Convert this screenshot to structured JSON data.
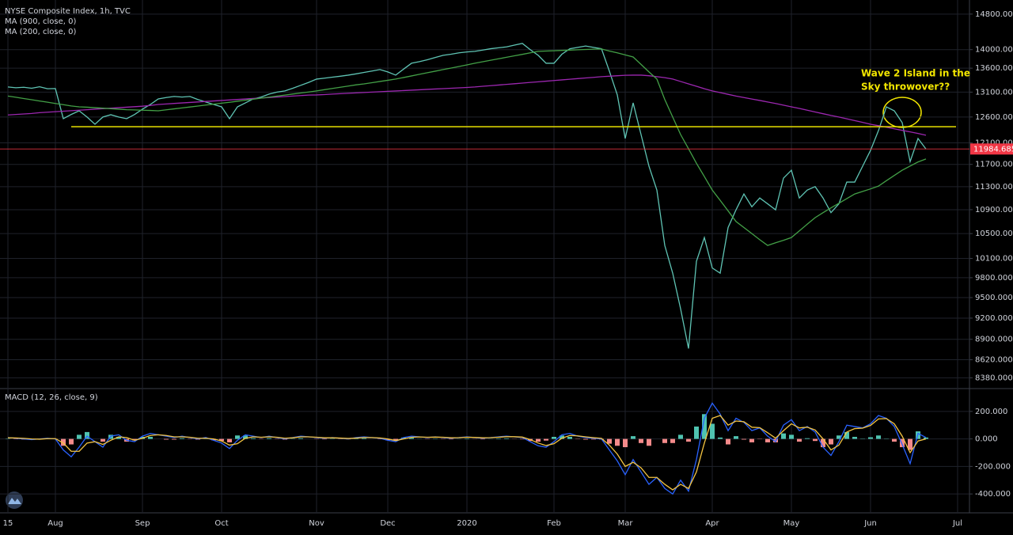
{
  "chart_data": [
    {
      "type": "line",
      "title": "NYSE Composite Index, 1h, TVC",
      "log_scale": true,
      "grid": true,
      "categories": [
        "15",
        null,
        null,
        null,
        null,
        null,
        "Aug",
        null,
        null,
        null,
        null,
        null,
        null,
        null,
        null,
        null,
        null,
        "Sep",
        null,
        null,
        null,
        null,
        null,
        null,
        null,
        null,
        null,
        "Oct",
        null,
        null,
        null,
        null,
        null,
        null,
        null,
        null,
        null,
        null,
        null,
        "Nov",
        null,
        null,
        null,
        null,
        null,
        null,
        null,
        null,
        "Dec",
        null,
        null,
        null,
        null,
        null,
        null,
        null,
        null,
        null,
        "2020",
        null,
        null,
        null,
        null,
        null,
        null,
        null,
        null,
        null,
        null,
        "Feb",
        null,
        null,
        null,
        null,
        null,
        null,
        null,
        null,
        "Mar",
        null,
        null,
        null,
        null,
        null,
        null,
        null,
        null,
        null,
        null,
        "Apr",
        null,
        null,
        null,
        null,
        null,
        null,
        null,
        null,
        null,
        "May",
        null,
        null,
        null,
        null,
        null,
        null,
        null,
        null,
        null,
        "Jun",
        null,
        null,
        null,
        null,
        null,
        null,
        null,
        null,
        null,
        null,
        "Jul"
      ],
      "ylim": [
        8250,
        15130
      ],
      "yticks": [
        {
          "value": 14800,
          "label": "14800.000"
        },
        {
          "value": 14000,
          "label": "14000.000"
        },
        {
          "value": 13600,
          "label": "13600.000"
        },
        {
          "value": 13100,
          "label": "13100.000"
        },
        {
          "value": 12600,
          "label": "12600.000"
        },
        {
          "value": 12100,
          "label": "12100.000"
        },
        {
          "value": 11700,
          "label": "11700.000"
        },
        {
          "value": 11300,
          "label": "11300.000"
        },
        {
          "value": 10900,
          "label": "10900.000"
        },
        {
          "value": 10500,
          "label": "10500.000"
        },
        {
          "value": 10100,
          "label": "10100.000"
        },
        {
          "value": 9800,
          "label": "9800.000"
        },
        {
          "value": 9500,
          "label": "9500.000"
        },
        {
          "value": 9200,
          "label": "9200.000"
        },
        {
          "value": 8900,
          "label": "8900.000"
        },
        {
          "value": 8620,
          "label": "8620.000"
        },
        {
          "value": 8380,
          "label": "8380.000"
        }
      ],
      "series": [
        {
          "color": "#5fc4b4",
          "last_color": "#f23645",
          "values": [
            13206,
            13190,
            13200,
            13180,
            13210,
            13170,
            13173,
            12567,
            12650,
            12723,
            12600,
            12458,
            12600,
            12645,
            12600,
            12567,
            12650,
            12755,
            12850,
            12962,
            12990,
            13011,
            13000,
            13011,
            12950,
            12900,
            12850,
            12802,
            12567,
            12802,
            12880,
            12962,
            13000,
            13060,
            13100,
            13125,
            13180,
            13240,
            13300,
            13370,
            13390,
            13410,
            13430,
            13453,
            13480,
            13510,
            13540,
            13570,
            13520,
            13453,
            13580,
            13705,
            13740,
            13780,
            13830,
            13876,
            13900,
            13930,
            13950,
            13962,
            13990,
            14020,
            14040,
            14060,
            14100,
            14137,
            14000,
            13876,
            13705,
            13705,
            13900,
            14020,
            14050,
            14080,
            14050,
            14020,
            13536,
            13043,
            12183,
            12882,
            12259,
            11667,
            11240,
            10307,
            9870,
            9334,
            8773,
            10055,
            10435,
            9950,
            9870,
            10600,
            10897,
            11171,
            10950,
            11101,
            11000,
            10897,
            11452,
            11594,
            11101,
            11240,
            11300,
            11100,
            10850,
            11000,
            11381,
            11381,
            11667,
            11960,
            12335,
            12802,
            12723,
            12489,
            11750,
            12183,
            11984.685,
            null,
            null,
            null,
            null
          ]
        },
        {
          "name": "MA (900, close, 0)",
          "color": "#9c27b0",
          "values": [
            12640,
            12650,
            12660,
            12670,
            12685,
            12695,
            12705,
            12715,
            12725,
            12735,
            12745,
            12755,
            12765,
            12775,
            12785,
            12795,
            12805,
            12815,
            12830,
            12850,
            12860,
            12870,
            12880,
            12890,
            12900,
            12910,
            12920,
            12930,
            12940,
            12950,
            12960,
            12970,
            12980,
            12990,
            13000,
            13010,
            13020,
            13030,
            13040,
            13043,
            13050,
            13060,
            13068,
            13076,
            13084,
            13092,
            13100,
            13108,
            13116,
            13124,
            13132,
            13140,
            13148,
            13156,
            13164,
            13172,
            13180,
            13188,
            13196,
            13206,
            13220,
            13233,
            13246,
            13260,
            13273,
            13286,
            13300,
            13313,
            13326,
            13340,
            13353,
            13366,
            13380,
            13393,
            13406,
            13420,
            13430,
            13440,
            13450,
            13453,
            13453,
            13440,
            13420,
            13400,
            13370,
            13320,
            13270,
            13220,
            13170,
            13125,
            13090,
            13055,
            13020,
            12990,
            12960,
            12930,
            12900,
            12870,
            12835,
            12802,
            12770,
            12735,
            12700,
            12665,
            12630,
            12600,
            12565,
            12530,
            12495,
            12458,
            12430,
            12400,
            12370,
            12340,
            12310,
            12280,
            12246,
            null,
            null,
            null,
            null
          ]
        },
        {
          "name": "MA (200, close, 0)",
          "color": "#43a047",
          "values": [
            13020,
            12995,
            12970,
            12945,
            12920,
            12895,
            12870,
            12845,
            12820,
            12802,
            12795,
            12785,
            12775,
            12765,
            12755,
            12745,
            12740,
            12735,
            12730,
            12723,
            12742,
            12761,
            12780,
            12799,
            12818,
            12837,
            12856,
            12875,
            12894,
            12914,
            12935,
            12956,
            12977,
            12998,
            13019,
            13040,
            13061,
            13082,
            13103,
            13125,
            13150,
            13175,
            13200,
            13225,
            13250,
            13270,
            13295,
            13320,
            13345,
            13370,
            13403,
            13436,
            13470,
            13503,
            13536,
            13570,
            13603,
            13636,
            13670,
            13705,
            13737,
            13769,
            13801,
            13833,
            13865,
            13897,
            13930,
            13962,
            13969,
            13976,
            13983,
            13990,
            13997,
            14004,
            14010,
            14015,
            13970,
            13930,
            13885,
            13840,
            13680,
            13520,
            13370,
            12950,
            12600,
            12259,
            11990,
            11720,
            11480,
            11240,
            11060,
            10880,
            10700,
            10600,
            10500,
            10400,
            10307,
            10350,
            10390,
            10435,
            10545,
            10655,
            10765,
            10850,
            10930,
            11010,
            11090,
            11171,
            11215,
            11260,
            11310,
            11405,
            11500,
            11594,
            11670,
            11745,
            11800,
            null,
            null,
            null,
            null
          ]
        }
      ],
      "hline": {
        "value": 12410,
        "color": "#e8e000"
      },
      "annotation": {
        "lines": [
          "Wave 2 Island in the",
          "Sky throwover??"
        ],
        "color": "#f2e600"
      }
    },
    {
      "type": "line",
      "title": "MACD (12, 26, close, 9)",
      "grid": true,
      "ylim": [
        -520,
        360
      ],
      "yticks": [
        {
          "value": 200,
          "label": "200.000"
        },
        {
          "value": 0,
          "label": "0.000"
        },
        {
          "value": -200,
          "label": "-200.000"
        },
        {
          "value": -400,
          "label": "-400.000"
        }
      ],
      "series": [
        {
          "type": "bar",
          "color": "#4fc3b0",
          "negative_color": "#f48a8a",
          "values": [
            2,
            -2,
            -4,
            -5,
            2,
            3,
            -2,
            -50,
            -40,
            30,
            50,
            0,
            -20,
            30,
            15,
            -20,
            -10,
            15,
            15,
            0,
            -5,
            -5,
            5,
            -2,
            -5,
            5,
            -10,
            -15,
            -25,
            25,
            25,
            5,
            -2,
            5,
            -2,
            -5,
            2,
            5,
            0,
            -2,
            -3,
            2,
            -1,
            -3,
            4,
            5,
            0,
            -2,
            -10,
            -8,
            10,
            8,
            1,
            -2,
            2,
            -2,
            -3,
            1,
            3,
            -1,
            -3,
            1,
            3,
            4,
            -1,
            -3,
            -15,
            -20,
            -12,
            15,
            25,
            15,
            -2,
            -5,
            -4,
            -4,
            -35,
            -50,
            -60,
            20,
            -30,
            -50,
            0,
            -30,
            -30,
            30,
            -20,
            90,
            180,
            110,
            10,
            -40,
            20,
            -5,
            -25,
            -2,
            -25,
            -25,
            40,
            30,
            -20,
            5,
            -15,
            -60,
            -40,
            25,
            50,
            15,
            2,
            12,
            25,
            2,
            -20,
            -60,
            -80,
            55,
            10,
            null,
            null,
            null,
            null
          ]
        },
        {
          "color": "#2962ff",
          "values": [
            10,
            5,
            0,
            -5,
            0,
            5,
            0,
            -80,
            -130,
            -60,
            20,
            -20,
            -60,
            20,
            30,
            -10,
            -20,
            20,
            40,
            30,
            20,
            10,
            20,
            10,
            0,
            10,
            -10,
            -30,
            -70,
            -10,
            30,
            20,
            10,
            20,
            10,
            0,
            10,
            20,
            15,
            10,
            5,
            10,
            5,
            0,
            10,
            15,
            10,
            5,
            -10,
            -20,
            10,
            20,
            15,
            10,
            15,
            10,
            5,
            10,
            15,
            10,
            5,
            10,
            15,
            20,
            15,
            10,
            -20,
            -50,
            -60,
            -20,
            30,
            40,
            20,
            10,
            5,
            0,
            -80,
            -160,
            -260,
            -150,
            -240,
            -330,
            -280,
            -360,
            -400,
            -300,
            -380,
            -150,
            150,
            260,
            180,
            60,
            150,
            120,
            60,
            80,
            20,
            -20,
            100,
            140,
            60,
            90,
            50,
            -60,
            -120,
            -20,
            100,
            90,
            80,
            110,
            170,
            150,
            90,
            -40,
            -180,
            40,
            10,
            null,
            null,
            null,
            null
          ]
        },
        {
          "color": "#f5c542",
          "values": [
            8,
            7,
            4,
            0,
            -2,
            2,
            2,
            -30,
            -90,
            -90,
            -30,
            -20,
            -40,
            -10,
            15,
            10,
            -10,
            5,
            25,
            30,
            25,
            15,
            15,
            12,
            5,
            5,
            0,
            -15,
            -45,
            -35,
            5,
            15,
            12,
            15,
            12,
            5,
            8,
            15,
            15,
            12,
            8,
            8,
            6,
            3,
            6,
            10,
            10,
            7,
            0,
            -12,
            0,
            12,
            14,
            12,
            13,
            12,
            8,
            9,
            12,
            11,
            8,
            9,
            12,
            16,
            16,
            13,
            -5,
            -30,
            -48,
            -35,
            5,
            25,
            22,
            15,
            9,
            4,
            -45,
            -110,
            -200,
            -170,
            -210,
            -280,
            -280,
            -330,
            -370,
            -330,
            -360,
            -240,
            -30,
            150,
            170,
            100,
            130,
            125,
            85,
            82,
            45,
            5,
            60,
            110,
            80,
            85,
            65,
            0,
            -80,
            -45,
            50,
            75,
            78,
            98,
            145,
            148,
            110,
            20,
            -100,
            -15,
            0,
            null,
            null,
            null,
            null
          ]
        }
      ]
    }
  ]
}
